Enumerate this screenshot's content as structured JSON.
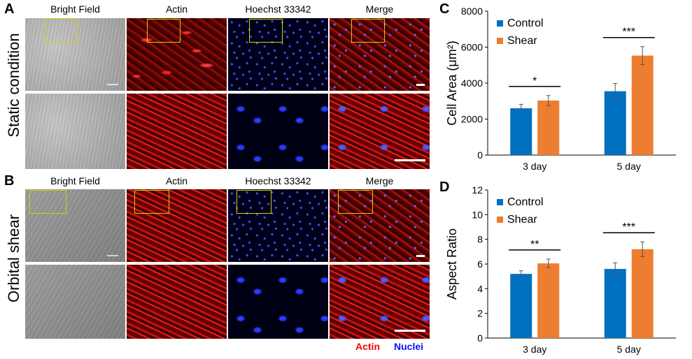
{
  "panels": {
    "A": "A",
    "B": "B",
    "C": "C",
    "D": "D"
  },
  "micrographs": {
    "column_headers": [
      "Bright Field",
      "Actin",
      "Hoechst 33342",
      "Merge"
    ],
    "row_labels": [
      "Static condition",
      "Orbital shear"
    ],
    "stain_legend": {
      "actin": "Actin",
      "nuclei": "Nuclei"
    },
    "colors": {
      "actin": "#ff0000",
      "nuclei": "#1010ff",
      "roi_box": "#d8d000"
    }
  },
  "chart_data": [
    {
      "panel": "C",
      "type": "bar",
      "categories": [
        "3 day",
        "5 day"
      ],
      "series": [
        {
          "name": "Control",
          "color": "#0070c0",
          "values": [
            2600,
            3550
          ],
          "errors": [
            220,
            430
          ]
        },
        {
          "name": "Shear",
          "color": "#ed7d31",
          "values": [
            3030,
            5530
          ],
          "errors": [
            280,
            500
          ]
        }
      ],
      "ylabel": "Cell Area (μm²)",
      "ylim": [
        0,
        8000
      ],
      "yticks": [
        "0",
        "2000",
        "4000",
        "6000",
        "8000"
      ],
      "significance": [
        "*",
        "***"
      ],
      "legend": "top-left",
      "grid": false
    },
    {
      "panel": "D",
      "type": "bar",
      "categories": [
        "3 day",
        "5 day"
      ],
      "series": [
        {
          "name": "Control",
          "color": "#0070c0",
          "values": [
            5.2,
            5.6
          ],
          "errors": [
            0.25,
            0.5
          ]
        },
        {
          "name": "Shear",
          "color": "#ed7d31",
          "values": [
            6.05,
            7.2
          ],
          "errors": [
            0.35,
            0.6
          ]
        }
      ],
      "ylabel": "Aspect Ratio",
      "ylim": [
        0,
        12
      ],
      "yticks": [
        "0",
        "2",
        "4",
        "6",
        "8",
        "10",
        "12"
      ],
      "significance": [
        "**",
        "***"
      ],
      "legend": "top-left",
      "grid": false
    }
  ]
}
